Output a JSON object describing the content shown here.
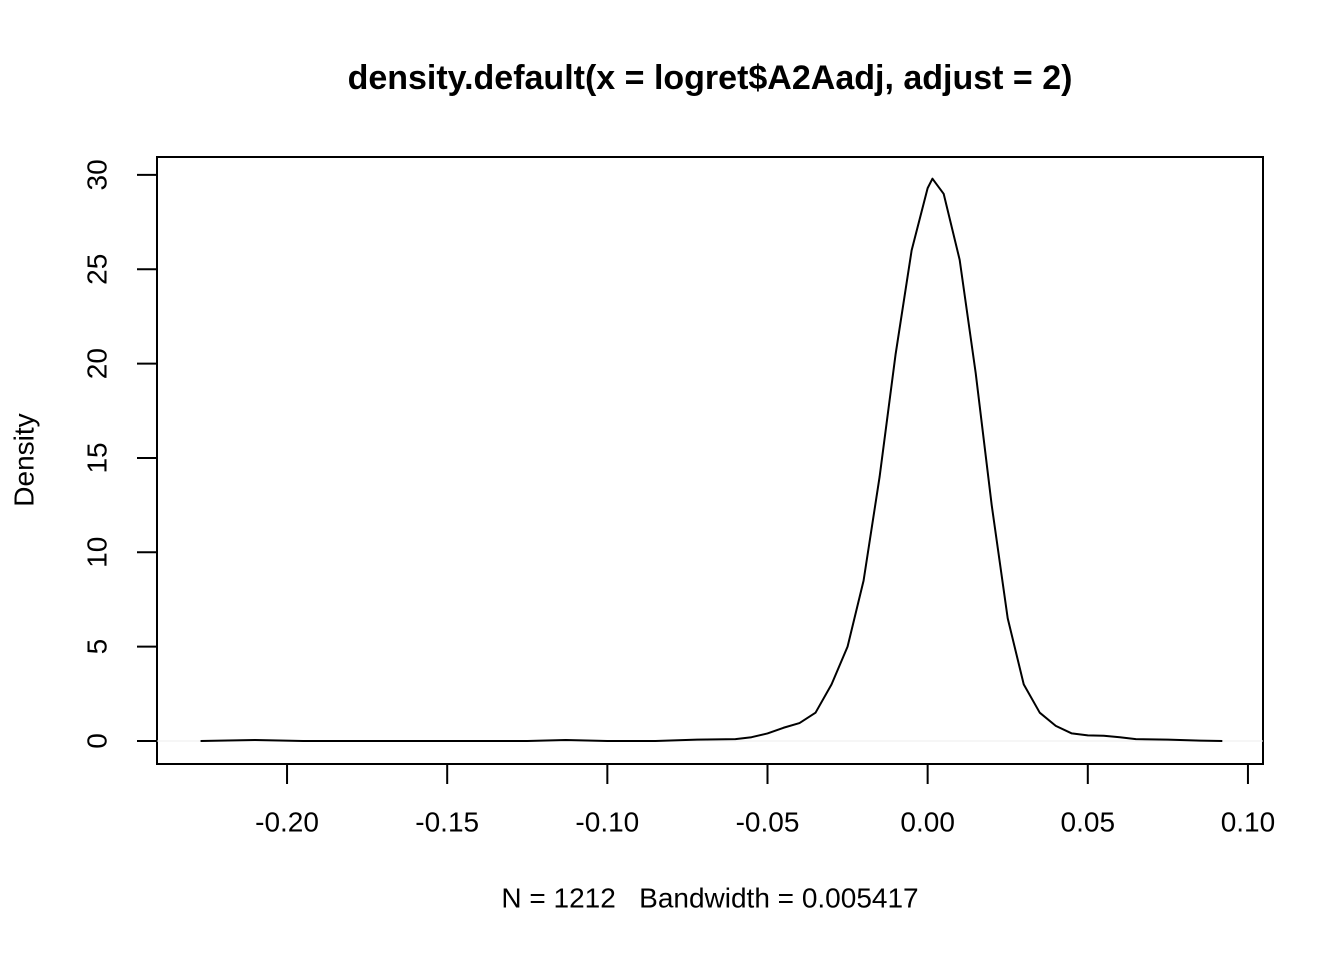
{
  "chart_data": {
    "type": "line",
    "title": "density.default(x = logret$A2Aadj, adjust = 2)",
    "x_label": "N = 1212   Bandwidth = 0.005417",
    "y_label": "Density",
    "x": [
      -0.227,
      -0.21,
      -0.195,
      -0.15,
      -0.125,
      -0.113,
      -0.1,
      -0.085,
      -0.072,
      -0.06,
      -0.055,
      -0.05,
      -0.045,
      -0.04,
      -0.035,
      -0.03,
      -0.025,
      -0.02,
      -0.015,
      -0.01,
      -0.005,
      0,
      0.0015,
      0.005,
      0.01,
      0.015,
      0.02,
      0.025,
      0.03,
      0.035,
      0.04,
      0.045,
      0.05,
      0.055,
      0.06,
      0.065,
      0.075,
      0.085,
      0.092
    ],
    "series": [
      {
        "color": "#000000",
        "values": [
          0,
          0.05,
          0,
          0,
          0,
          0.05,
          0,
          0,
          0.07,
          0.1,
          0.2,
          0.4,
          0.7,
          0.95,
          1.5,
          3,
          5,
          8.5,
          14,
          20.5,
          26,
          29.3,
          29.8,
          29,
          25.5,
          19.5,
          12.5,
          6.5,
          3,
          1.5,
          0.8,
          0.4,
          0.3,
          0.28,
          0.2,
          0.1,
          0.07,
          0.02,
          0
        ]
      }
    ],
    "xlim": [
      -0.2406,
      0.1047
    ],
    "ylim": [
      -1.22,
      30.95
    ],
    "xticks": [
      {
        "value": -0.2,
        "label": "-0.20"
      },
      {
        "value": -0.15,
        "label": "-0.15"
      },
      {
        "value": -0.1,
        "label": "-0.10"
      },
      {
        "value": -0.05,
        "label": "-0.05"
      },
      {
        "value": 0,
        "label": "0.00"
      },
      {
        "value": 0.05,
        "label": "0.05"
      },
      {
        "value": 0.1,
        "label": "0.10"
      }
    ],
    "yticks": [
      0,
      5,
      10,
      15,
      20,
      25,
      30
    ],
    "zero_line": true,
    "zero_line_color": "#eeeeee"
  }
}
